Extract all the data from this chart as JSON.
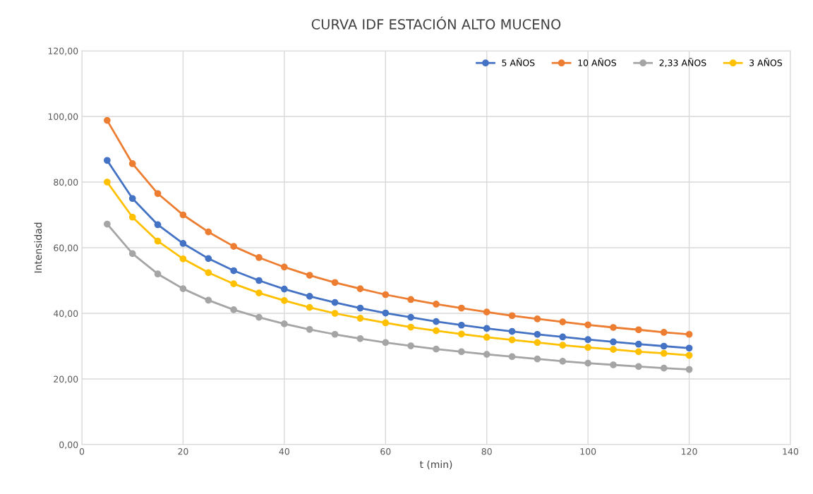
{
  "chart_data": {
    "type": "line",
    "title": "CURVA IDF ESTACIÓN ALTO MUCENO",
    "xlabel": "t (min)",
    "ylabel": "Intensidad",
    "x": [
      5,
      10,
      15,
      20,
      25,
      30,
      35,
      40,
      45,
      50,
      55,
      60,
      65,
      70,
      75,
      80,
      85,
      90,
      95,
      100,
      105,
      110,
      115,
      120
    ],
    "series": [
      {
        "name": "5 AÑOS",
        "color": "#4472c4",
        "values": [
          86.6,
          75.0,
          67.0,
          61.3,
          56.7,
          53.0,
          50.0,
          47.4,
          45.2,
          43.3,
          41.6,
          40.1,
          38.8,
          37.5,
          36.4,
          35.4,
          34.5,
          33.6,
          32.8,
          32.0,
          31.3,
          30.6,
          30.0,
          29.4
        ]
      },
      {
        "name": "10 AÑOS",
        "color": "#ed7d31",
        "values": [
          98.8,
          85.6,
          76.5,
          70.0,
          64.8,
          60.4,
          57.0,
          54.1,
          51.6,
          49.4,
          47.5,
          45.7,
          44.2,
          42.8,
          41.6,
          40.4,
          39.3,
          38.3,
          37.4,
          36.5,
          35.7,
          35.0,
          34.2,
          33.6
        ]
      },
      {
        "name": "2,33 AÑOS",
        "color": "#a5a5a5",
        "values": [
          67.2,
          58.2,
          52.0,
          47.5,
          44.0,
          41.1,
          38.8,
          36.8,
          35.1,
          33.6,
          32.3,
          31.1,
          30.1,
          29.1,
          28.3,
          27.5,
          26.8,
          26.1,
          25.4,
          24.8,
          24.3,
          23.8,
          23.3,
          22.9
        ]
      },
      {
        "name": "3 AÑOS",
        "color": "#ffc000",
        "values": [
          80.0,
          69.3,
          62.0,
          56.6,
          52.4,
          49.0,
          46.2,
          43.9,
          41.8,
          40.0,
          38.5,
          37.1,
          35.8,
          34.7,
          33.7,
          32.7,
          31.9,
          31.1,
          30.3,
          29.6,
          29.0,
          28.3,
          27.8,
          27.2
        ]
      }
    ],
    "xlim": [
      0,
      140
    ],
    "xticks": [
      0,
      20,
      40,
      60,
      80,
      100,
      120,
      140
    ],
    "ylim": [
      0,
      120
    ],
    "yticks": [
      {
        "value": 0,
        "label": "0,00"
      },
      {
        "value": 20,
        "label": "20,00"
      },
      {
        "value": 40,
        "label": "40,00"
      },
      {
        "value": 60,
        "label": "60,00"
      },
      {
        "value": 80,
        "label": "80,00"
      },
      {
        "value": 100,
        "label": "100,00"
      },
      {
        "value": 120,
        "label": "120,00"
      }
    ],
    "grid": true,
    "legend": "top right",
    "marker": "circle",
    "line_style": "solid"
  }
}
